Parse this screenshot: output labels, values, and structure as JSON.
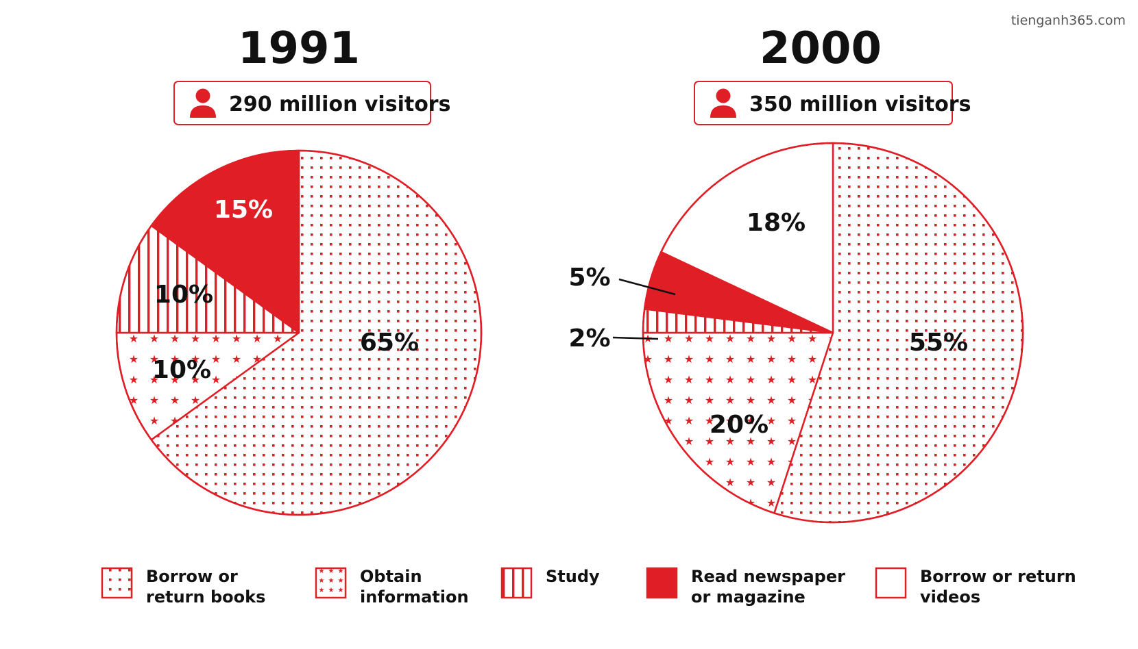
{
  "watermark": "tienganh365.com",
  "colors": {
    "accent": "#e01e26",
    "text": "#111111",
    "background": "#ffffff"
  },
  "chart_data": [
    {
      "type": "pie",
      "title": "1991",
      "subtitle": "290 million visitors",
      "subtitle_icon": "person-icon",
      "slices": [
        {
          "category": "Borrow or return books",
          "value": 65,
          "label": "65%"
        },
        {
          "category": "Obtain information",
          "value": 10,
          "label": "10%"
        },
        {
          "category": "Study",
          "value": 10,
          "label": "10%"
        },
        {
          "category": "Read newspaper or magazine",
          "value": 15,
          "label": "15%"
        }
      ]
    },
    {
      "type": "pie",
      "title": "2000",
      "subtitle": "350 million visitors",
      "subtitle_icon": "person-icon",
      "slices": [
        {
          "category": "Borrow or return books",
          "value": 55,
          "label": "55%"
        },
        {
          "category": "Obtain information",
          "value": 20,
          "label": "20%"
        },
        {
          "category": "Study",
          "value": 2,
          "label": "2%"
        },
        {
          "category": "Read newspaper or magazine",
          "value": 5,
          "label": "5%"
        },
        {
          "category": "Borrow or return videos",
          "value": 18,
          "label": "18%"
        }
      ]
    }
  ],
  "legend": {
    "placement": "bottom",
    "items": [
      {
        "category": "Borrow or return books",
        "lines": [
          "Borrow or",
          "return books"
        ],
        "pattern": "dots"
      },
      {
        "category": "Obtain information",
        "lines": [
          "Obtain",
          "information"
        ],
        "pattern": "stars"
      },
      {
        "category": "Study",
        "lines": [
          "Study"
        ],
        "pattern": "stripes"
      },
      {
        "category": "Read newspaper or magazine",
        "lines": [
          "Read newspaper",
          "or magazine"
        ],
        "pattern": "solid"
      },
      {
        "category": "Borrow or return videos",
        "lines": [
          "Borrow or return",
          "videos"
        ],
        "pattern": "empty"
      }
    ]
  }
}
